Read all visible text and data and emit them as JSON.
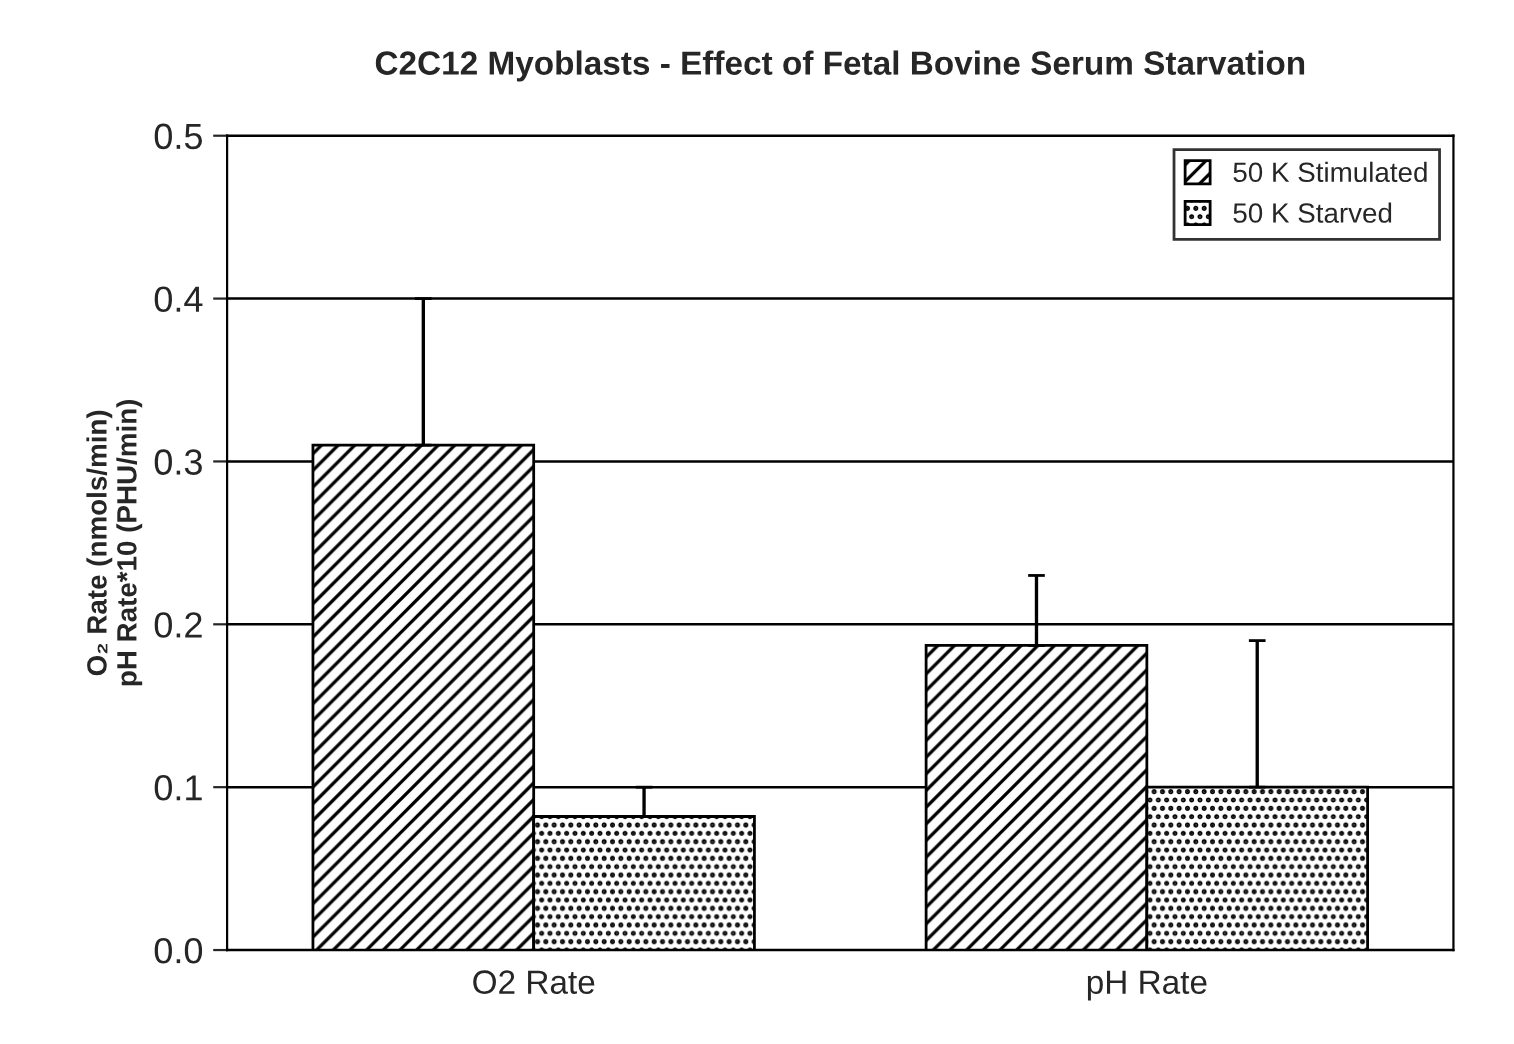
{
  "chart_data": {
    "type": "bar",
    "title": "C2C12 Myoblasts - Effect of Fetal Bovine Serum Starvation",
    "ylabel": "O₂ Rate (nmols/min)\npH Rate*10 (PHU/min)",
    "categories": [
      "O2 Rate",
      "pH Rate"
    ],
    "series": [
      {
        "name": "50 K Stimulated",
        "color": "#000000",
        "values": [
          0.31,
          0.187
        ],
        "errors": [
          [
            0.31,
            0.4
          ],
          [
            0.187,
            0.23
          ]
        ]
      },
      {
        "name": "50 K Starved",
        "color": "#000000",
        "values": [
          0.082,
          0.1
        ],
        "errors": [
          [
            0.082,
            0.1
          ],
          [
            0.1,
            0.19
          ]
        ]
      }
    ],
    "ylim": [
      0,
      0.5
    ],
    "yticks": [
      {
        "value": 0,
        "label": "0.0"
      },
      0.1,
      0.2,
      0.3,
      0.4,
      0.5
    ],
    "grid": "y",
    "legend": "top right"
  }
}
